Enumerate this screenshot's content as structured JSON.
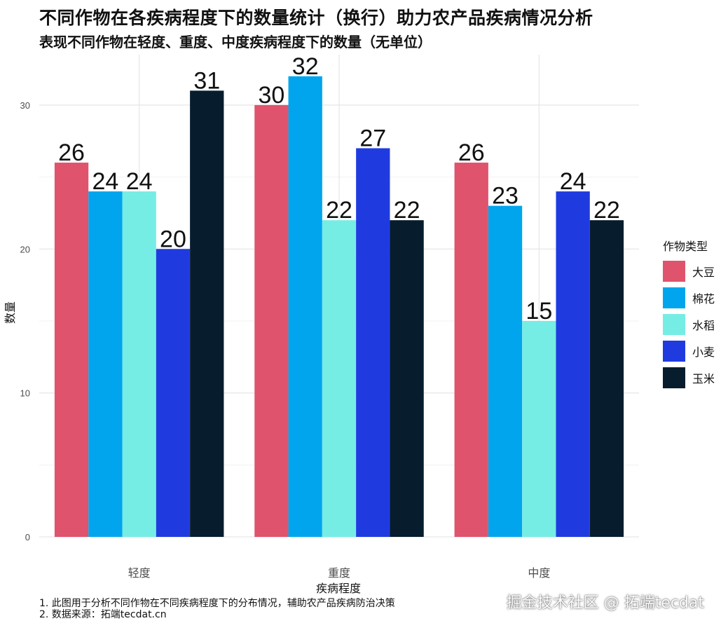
{
  "header": {
    "title": "不同作物在各疾病程度下的数量统计（换行）助力农产品疾病情况分析",
    "subtitle": "表现不同作物在轻度、重度、中度疾病程度下的数量（无单位）"
  },
  "captions": [
    "1. 此图用于分析不同作物在不同疾病程度下的分布情况，辅助农产品疾病防治决策",
    "2. 数据来源：拓端tecdat.cn"
  ],
  "watermark": "掘金技术社区 @ 拓端tecdat",
  "legend": {
    "title": "作物类型"
  },
  "chart_data": {
    "type": "bar",
    "title": "不同作物在各疾病程度下的数量统计（换行）助力农产品疾病情况分析",
    "subtitle": "表现不同作物在轻度、重度、中度疾病程度下的数量（无单位）",
    "xlabel": "疾病程度",
    "ylabel": "数量",
    "categories": [
      "轻度",
      "重度",
      "中度"
    ],
    "ylim": [
      0,
      33.5
    ],
    "yticks": [
      0,
      10,
      20,
      30
    ],
    "grid": true,
    "legend_position": "right",
    "series": [
      {
        "name": "大豆",
        "color": "#e0536c",
        "values": [
          26,
          30,
          26
        ]
      },
      {
        "name": "棉花",
        "color": "#00a5ee",
        "values": [
          24,
          32,
          23
        ]
      },
      {
        "name": "水稻",
        "color": "#76ede4",
        "values": [
          24,
          22,
          15
        ]
      },
      {
        "name": "小麦",
        "color": "#1f3be0",
        "values": [
          20,
          27,
          24
        ]
      },
      {
        "name": "玉米",
        "color": "#071d2e",
        "values": [
          31,
          22,
          22
        ]
      }
    ]
  }
}
